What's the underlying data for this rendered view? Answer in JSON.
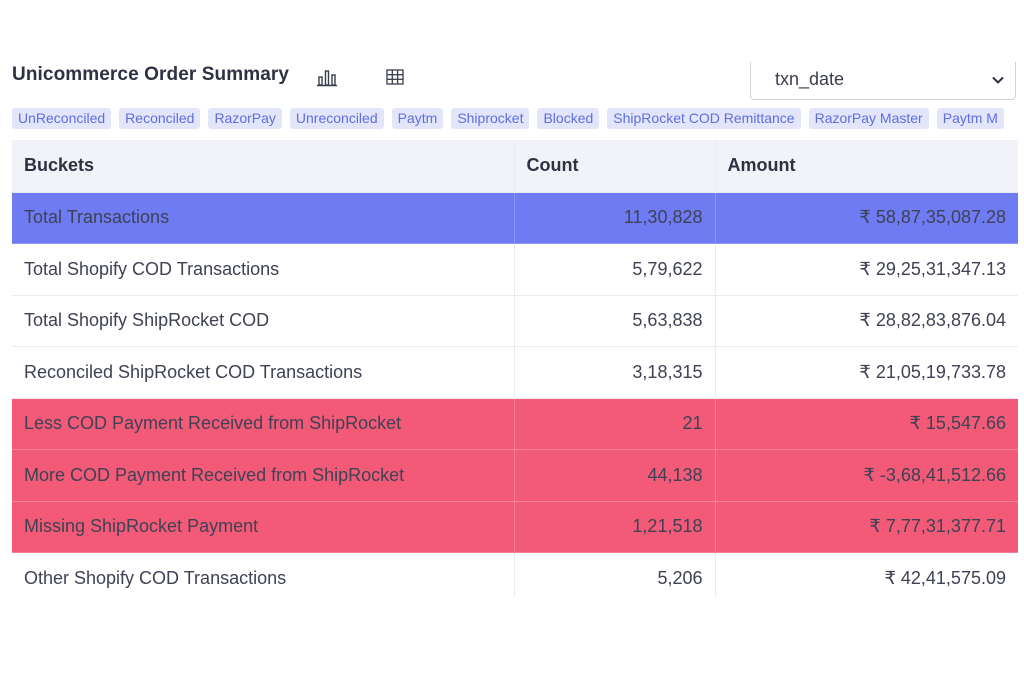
{
  "header": {
    "title": "Unicommerce Order Summary",
    "icons": [
      "bar-chart-icon",
      "table-grid-icon"
    ],
    "select": {
      "value": "txn_date"
    }
  },
  "tags": [
    "UnReconciled",
    "Reconciled",
    "RazorPay",
    "Unreconciled",
    "Paytm",
    "Shiprocket",
    "Blocked",
    "ShipRocket COD Remittance",
    "RazorPay Master",
    "Paytm M"
  ],
  "colors": {
    "primary": "#6f7bf2",
    "danger": "#f25a78",
    "tag_bg": "#e3e6fb",
    "tag_text": "#5f6ee0"
  },
  "table": {
    "headers": [
      "Buckets",
      "Count",
      "Amount"
    ],
    "rows": [
      {
        "bucket": "Total Transactions",
        "count": "11,30,828",
        "amount": "₹ 58,87,35,087.28",
        "style": "primary"
      },
      {
        "bucket": "Total Shopify COD Transactions",
        "count": "5,79,622",
        "amount": "₹ 29,25,31,347.13",
        "style": "default"
      },
      {
        "bucket": "Total Shopify ShipRocket COD",
        "count": "5,63,838",
        "amount": "₹ 28,82,83,876.04",
        "style": "default"
      },
      {
        "bucket": "Reconciled ShipRocket COD Transactions",
        "count": "3,18,315",
        "amount": "₹ 21,05,19,733.78",
        "style": "default"
      },
      {
        "bucket": "Less COD Payment Received from ShipRocket",
        "count": "21",
        "amount": "₹ 15,547.66",
        "style": "danger"
      },
      {
        "bucket": "More COD Payment Received from ShipRocket",
        "count": "44,138",
        "amount": "₹ -3,68,41,512.66",
        "style": "danger"
      },
      {
        "bucket": "Missing ShipRocket Payment",
        "count": "1,21,518",
        "amount": "₹ 7,77,31,377.71",
        "style": "danger"
      },
      {
        "bucket": "Other Shopify COD Transactions",
        "count": "5,206",
        "amount": "₹ 42,41,575.09",
        "style": "default"
      }
    ]
  }
}
